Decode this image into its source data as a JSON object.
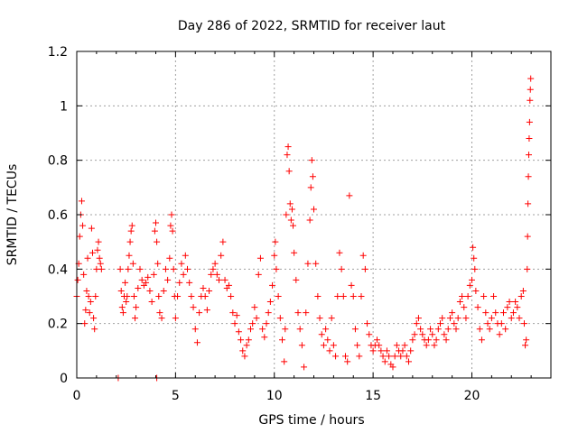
{
  "chart_data": {
    "type": "scatter",
    "title": "Day 286 of 2022, SRMTID for receiver laut",
    "xlabel": "GPS time / hours",
    "ylabel": "SRMTID / TECUs",
    "xlim": [
      0,
      24
    ],
    "ylim": [
      0,
      1.2
    ],
    "xticks": [
      0,
      5,
      10,
      15,
      20
    ],
    "xtick_labels": [
      "0",
      "5",
      "10",
      "15",
      "20"
    ],
    "yticks": [
      0,
      0.2,
      0.4,
      0.6,
      0.8,
      1,
      1.2
    ],
    "ytick_labels": [
      "0",
      "0.2",
      "0.4",
      "0.6",
      "0.8",
      "1",
      "1.2"
    ],
    "grid": true,
    "series_color": "#ff0000",
    "series": [
      {
        "name": "SRMTID",
        "marker": "plus",
        "points": [
          [
            0.0,
            0.3
          ],
          [
            0.05,
            0.36
          ],
          [
            0.1,
            0.42
          ],
          [
            0.15,
            0.52
          ],
          [
            0.2,
            0.6
          ],
          [
            0.25,
            0.65
          ],
          [
            0.3,
            0.56
          ],
          [
            0.35,
            0.38
          ],
          [
            0.4,
            0.2
          ],
          [
            0.45,
            0.25
          ],
          [
            0.5,
            0.32
          ],
          [
            0.55,
            0.44
          ],
          [
            0.6,
            0.3
          ],
          [
            0.65,
            0.24
          ],
          [
            0.7,
            0.28
          ],
          [
            0.75,
            0.55
          ],
          [
            0.8,
            0.46
          ],
          [
            0.85,
            0.22
          ],
          [
            0.9,
            0.18
          ],
          [
            0.95,
            0.3
          ],
          [
            1.0,
            0.4
          ],
          [
            1.05,
            0.47
          ],
          [
            1.1,
            0.5
          ],
          [
            1.15,
            0.44
          ],
          [
            1.2,
            0.42
          ],
          [
            1.25,
            0.4
          ],
          [
            2.1,
            0.0
          ],
          [
            4.05,
            0.0
          ],
          [
            2.2,
            0.4
          ],
          [
            2.25,
            0.32
          ],
          [
            2.3,
            0.26
          ],
          [
            2.35,
            0.24
          ],
          [
            2.4,
            0.3
          ],
          [
            2.45,
            0.35
          ],
          [
            2.5,
            0.28
          ],
          [
            2.55,
            0.3
          ],
          [
            2.6,
            0.4
          ],
          [
            2.65,
            0.45
          ],
          [
            2.7,
            0.5
          ],
          [
            2.75,
            0.54
          ],
          [
            2.8,
            0.56
          ],
          [
            2.85,
            0.42
          ],
          [
            2.9,
            0.3
          ],
          [
            2.95,
            0.22
          ],
          [
            3.0,
            0.26
          ],
          [
            3.1,
            0.33
          ],
          [
            3.2,
            0.4
          ],
          [
            3.3,
            0.36
          ],
          [
            3.4,
            0.34
          ],
          [
            3.5,
            0.35
          ],
          [
            3.6,
            0.37
          ],
          [
            3.7,
            0.32
          ],
          [
            3.8,
            0.28
          ],
          [
            3.9,
            0.38
          ],
          [
            3.95,
            0.54
          ],
          [
            4.0,
            0.57
          ],
          [
            4.05,
            0.5
          ],
          [
            4.1,
            0.42
          ],
          [
            4.15,
            0.3
          ],
          [
            4.2,
            0.24
          ],
          [
            4.3,
            0.22
          ],
          [
            4.4,
            0.32
          ],
          [
            4.5,
            0.4
          ],
          [
            4.6,
            0.36
          ],
          [
            4.7,
            0.44
          ],
          [
            4.75,
            0.56
          ],
          [
            4.8,
            0.6
          ],
          [
            4.85,
            0.54
          ],
          [
            4.9,
            0.4
          ],
          [
            4.95,
            0.3
          ],
          [
            5.0,
            0.22
          ],
          [
            5.1,
            0.3
          ],
          [
            5.2,
            0.35
          ],
          [
            5.3,
            0.42
          ],
          [
            5.4,
            0.38
          ],
          [
            5.5,
            0.45
          ],
          [
            5.6,
            0.4
          ],
          [
            5.7,
            0.35
          ],
          [
            5.8,
            0.3
          ],
          [
            5.9,
            0.26
          ],
          [
            6.0,
            0.18
          ],
          [
            6.1,
            0.13
          ],
          [
            6.2,
            0.24
          ],
          [
            6.3,
            0.3
          ],
          [
            6.4,
            0.33
          ],
          [
            6.5,
            0.3
          ],
          [
            6.6,
            0.25
          ],
          [
            6.7,
            0.32
          ],
          [
            6.8,
            0.38
          ],
          [
            6.9,
            0.4
          ],
          [
            7.0,
            0.42
          ],
          [
            7.1,
            0.38
          ],
          [
            7.2,
            0.36
          ],
          [
            7.3,
            0.45
          ],
          [
            7.4,
            0.5
          ],
          [
            7.5,
            0.36
          ],
          [
            7.6,
            0.33
          ],
          [
            7.7,
            0.34
          ],
          [
            7.8,
            0.3
          ],
          [
            7.9,
            0.24
          ],
          [
            8.0,
            0.2
          ],
          [
            8.1,
            0.23
          ],
          [
            8.2,
            0.17
          ],
          [
            8.3,
            0.14
          ],
          [
            8.4,
            0.1
          ],
          [
            8.5,
            0.08
          ],
          [
            8.6,
            0.12
          ],
          [
            8.7,
            0.14
          ],
          [
            8.8,
            0.18
          ],
          [
            8.9,
            0.2
          ],
          [
            9.0,
            0.26
          ],
          [
            9.1,
            0.22
          ],
          [
            9.2,
            0.38
          ],
          [
            9.3,
            0.44
          ],
          [
            9.4,
            0.18
          ],
          [
            9.5,
            0.15
          ],
          [
            9.6,
            0.2
          ],
          [
            9.7,
            0.24
          ],
          [
            9.8,
            0.28
          ],
          [
            9.9,
            0.34
          ],
          [
            10.0,
            0.45
          ],
          [
            10.05,
            0.5
          ],
          [
            10.1,
            0.4
          ],
          [
            10.2,
            0.3
          ],
          [
            10.3,
            0.22
          ],
          [
            10.4,
            0.14
          ],
          [
            10.5,
            0.06
          ],
          [
            10.55,
            0.18
          ],
          [
            10.6,
            0.6
          ],
          [
            10.65,
            0.82
          ],
          [
            10.7,
            0.85
          ],
          [
            10.75,
            0.76
          ],
          [
            10.8,
            0.64
          ],
          [
            10.85,
            0.58
          ],
          [
            10.9,
            0.62
          ],
          [
            10.95,
            0.56
          ],
          [
            11.0,
            0.46
          ],
          [
            11.1,
            0.36
          ],
          [
            11.2,
            0.24
          ],
          [
            11.3,
            0.18
          ],
          [
            11.4,
            0.12
          ],
          [
            11.5,
            0.04
          ],
          [
            11.6,
            0.24
          ],
          [
            11.7,
            0.42
          ],
          [
            11.8,
            0.58
          ],
          [
            11.85,
            0.7
          ],
          [
            11.9,
            0.8
          ],
          [
            11.95,
            0.74
          ],
          [
            12.0,
            0.62
          ],
          [
            12.1,
            0.42
          ],
          [
            12.2,
            0.3
          ],
          [
            12.3,
            0.22
          ],
          [
            12.4,
            0.16
          ],
          [
            12.5,
            0.12
          ],
          [
            12.6,
            0.18
          ],
          [
            12.7,
            0.14
          ],
          [
            12.8,
            0.1
          ],
          [
            12.9,
            0.22
          ],
          [
            13.0,
            0.12
          ],
          [
            13.1,
            0.08
          ],
          [
            13.2,
            0.3
          ],
          [
            13.3,
            0.46
          ],
          [
            13.4,
            0.4
          ],
          [
            13.5,
            0.3
          ],
          [
            13.6,
            0.08
          ],
          [
            13.7,
            0.06
          ],
          [
            13.8,
            0.67
          ],
          [
            13.9,
            0.34
          ],
          [
            14.0,
            0.3
          ],
          [
            14.1,
            0.18
          ],
          [
            14.2,
            0.12
          ],
          [
            14.3,
            0.08
          ],
          [
            14.4,
            0.3
          ],
          [
            14.5,
            0.45
          ],
          [
            14.6,
            0.4
          ],
          [
            14.7,
            0.2
          ],
          [
            14.8,
            0.16
          ],
          [
            14.9,
            0.12
          ],
          [
            15.0,
            0.1
          ],
          [
            15.1,
            0.12
          ],
          [
            15.2,
            0.14
          ],
          [
            15.3,
            0.12
          ],
          [
            15.4,
            0.1
          ],
          [
            15.5,
            0.08
          ],
          [
            15.6,
            0.06
          ],
          [
            15.7,
            0.1
          ],
          [
            15.8,
            0.08
          ],
          [
            15.9,
            0.05
          ],
          [
            16.0,
            0.04
          ],
          [
            16.1,
            0.08
          ],
          [
            16.2,
            0.12
          ],
          [
            16.3,
            0.1
          ],
          [
            16.4,
            0.08
          ],
          [
            16.5,
            0.1
          ],
          [
            16.6,
            0.12
          ],
          [
            16.7,
            0.08
          ],
          [
            16.8,
            0.06
          ],
          [
            16.9,
            0.1
          ],
          [
            17.0,
            0.14
          ],
          [
            17.1,
            0.16
          ],
          [
            17.2,
            0.2
          ],
          [
            17.3,
            0.22
          ],
          [
            17.4,
            0.18
          ],
          [
            17.5,
            0.16
          ],
          [
            17.6,
            0.14
          ],
          [
            17.7,
            0.12
          ],
          [
            17.8,
            0.14
          ],
          [
            17.9,
            0.18
          ],
          [
            18.0,
            0.16
          ],
          [
            18.1,
            0.12
          ],
          [
            18.2,
            0.14
          ],
          [
            18.3,
            0.18
          ],
          [
            18.4,
            0.2
          ],
          [
            18.5,
            0.22
          ],
          [
            18.6,
            0.16
          ],
          [
            18.7,
            0.14
          ],
          [
            18.8,
            0.18
          ],
          [
            18.9,
            0.22
          ],
          [
            19.0,
            0.24
          ],
          [
            19.1,
            0.2
          ],
          [
            19.2,
            0.18
          ],
          [
            19.3,
            0.22
          ],
          [
            19.4,
            0.28
          ],
          [
            19.5,
            0.3
          ],
          [
            19.6,
            0.26
          ],
          [
            19.7,
            0.22
          ],
          [
            19.8,
            0.3
          ],
          [
            19.9,
            0.34
          ],
          [
            20.0,
            0.36
          ],
          [
            20.05,
            0.48
          ],
          [
            20.1,
            0.44
          ],
          [
            20.15,
            0.4
          ],
          [
            20.2,
            0.32
          ],
          [
            20.3,
            0.26
          ],
          [
            20.4,
            0.18
          ],
          [
            20.5,
            0.14
          ],
          [
            20.6,
            0.3
          ],
          [
            20.7,
            0.24
          ],
          [
            20.8,
            0.2
          ],
          [
            20.9,
            0.18
          ],
          [
            21.0,
            0.22
          ],
          [
            21.1,
            0.3
          ],
          [
            21.2,
            0.24
          ],
          [
            21.3,
            0.2
          ],
          [
            21.4,
            0.16
          ],
          [
            21.5,
            0.2
          ],
          [
            21.6,
            0.24
          ],
          [
            21.7,
            0.18
          ],
          [
            21.8,
            0.26
          ],
          [
            21.9,
            0.28
          ],
          [
            22.0,
            0.22
          ],
          [
            22.1,
            0.24
          ],
          [
            22.2,
            0.28
          ],
          [
            22.3,
            0.26
          ],
          [
            22.4,
            0.22
          ],
          [
            22.5,
            0.3
          ],
          [
            22.6,
            0.32
          ],
          [
            22.65,
            0.2
          ],
          [
            22.7,
            0.12
          ],
          [
            22.75,
            0.14
          ],
          [
            22.8,
            0.4
          ],
          [
            22.82,
            0.52
          ],
          [
            22.84,
            0.64
          ],
          [
            22.86,
            0.74
          ],
          [
            22.88,
            0.82
          ],
          [
            22.9,
            0.88
          ],
          [
            22.92,
            0.94
          ],
          [
            22.94,
            1.02
          ],
          [
            22.96,
            1.06
          ],
          [
            22.98,
            1.1
          ]
        ]
      }
    ]
  }
}
